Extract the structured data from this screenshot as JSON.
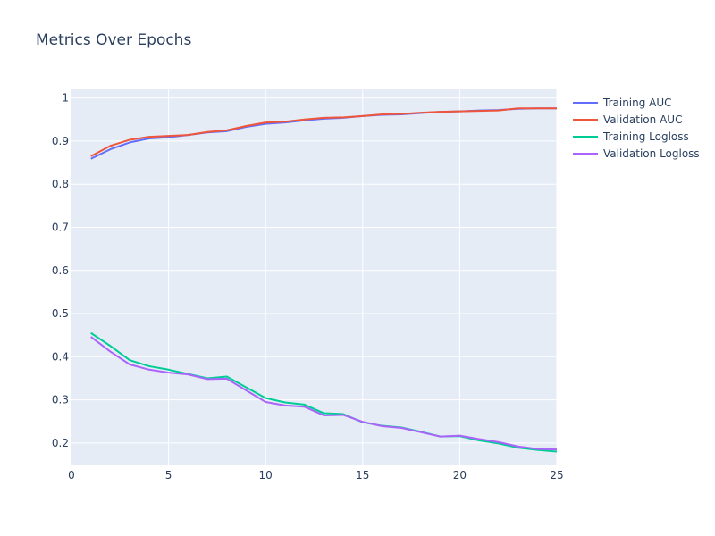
{
  "chart_data": {
    "type": "line",
    "title": "Metrics Over Epochs",
    "xlabel": "",
    "ylabel": "",
    "xlim": [
      0,
      25
    ],
    "ylim": [
      0.15,
      1.02
    ],
    "x_ticks": [
      0,
      5,
      10,
      15,
      20,
      25
    ],
    "y_ticks": [
      0.2,
      0.3,
      0.4,
      0.5,
      0.6,
      0.7,
      0.8,
      0.9,
      1
    ],
    "grid": true,
    "legend_position": "top-right",
    "x": [
      1,
      2,
      3,
      4,
      5,
      6,
      7,
      8,
      9,
      10,
      11,
      12,
      13,
      14,
      15,
      16,
      17,
      18,
      19,
      20,
      21,
      22,
      23,
      24,
      25
    ],
    "series": [
      {
        "name": "Training AUC",
        "color": "#636efa",
        "values": [
          0.859,
          0.881,
          0.897,
          0.906,
          0.909,
          0.914,
          0.92,
          0.923,
          0.933,
          0.94,
          0.943,
          0.948,
          0.952,
          0.954,
          0.958,
          0.961,
          0.962,
          0.965,
          0.968,
          0.969,
          0.971,
          0.972,
          0.975,
          0.976,
          0.976
        ]
      },
      {
        "name": "Validation AUC",
        "color": "#ef553b",
        "values": [
          0.865,
          0.889,
          0.903,
          0.91,
          0.912,
          0.914,
          0.921,
          0.925,
          0.935,
          0.943,
          0.945,
          0.95,
          0.954,
          0.955,
          0.958,
          0.962,
          0.963,
          0.966,
          0.968,
          0.969,
          0.97,
          0.971,
          0.976,
          0.976,
          0.976
        ]
      },
      {
        "name": "Training Logloss",
        "color": "#00cc96",
        "values": [
          0.455,
          0.425,
          0.392,
          0.378,
          0.37,
          0.36,
          0.35,
          0.354,
          0.329,
          0.304,
          0.294,
          0.289,
          0.269,
          0.267,
          0.248,
          0.24,
          0.236,
          0.226,
          0.215,
          0.216,
          0.206,
          0.199,
          0.189,
          0.184,
          0.18
        ]
      },
      {
        "name": "Validation Logloss",
        "color": "#ab63fa",
        "values": [
          0.446,
          0.412,
          0.382,
          0.37,
          0.363,
          0.359,
          0.348,
          0.349,
          0.322,
          0.295,
          0.287,
          0.284,
          0.264,
          0.265,
          0.249,
          0.239,
          0.235,
          0.225,
          0.215,
          0.217,
          0.209,
          0.202,
          0.192,
          0.186,
          0.185
        ]
      }
    ],
    "colors": {
      "plot_bg": "#e5ecf6",
      "grid": "#ffffff",
      "text": "#2a3f5f"
    }
  }
}
